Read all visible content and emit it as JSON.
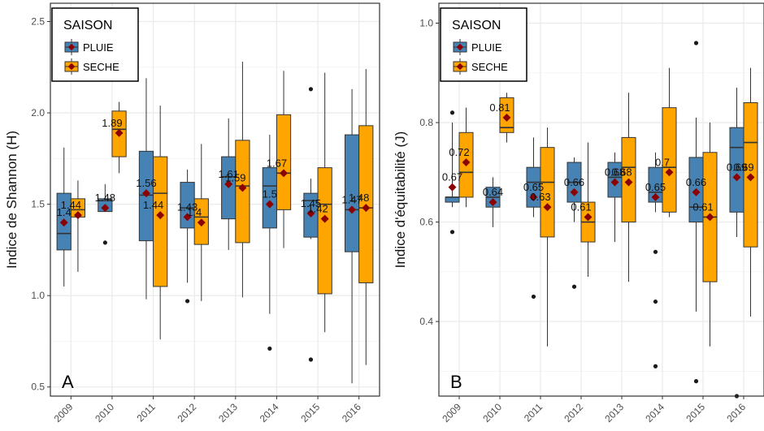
{
  "colors": {
    "pluie": "#4682B4",
    "seche": "#FFA500",
    "mean": "#8B0000",
    "grid": "#ebebeb",
    "border": "#333333"
  },
  "chart_data": [
    {
      "type": "box",
      "panel_label": "A",
      "ylabel": "Indice de Shannon (H)",
      "ylim": [
        0.45,
        2.6
      ],
      "yticks": [
        "0.5",
        "1.0",
        "1.5",
        "2.0",
        "2.5"
      ],
      "legend": {
        "title": "SAISON",
        "entries": [
          "PLUIE",
          "SECHE"
        ],
        "position": "top-left"
      },
      "categories": [
        "2009",
        "2010",
        "2011",
        "2012",
        "2013",
        "2014",
        "2015",
        "2016"
      ],
      "series": [
        {
          "name": "PLUIE",
          "whisker_low": [
            1.05,
            1.46,
            0.98,
            1.07,
            1.25,
            0.9,
            1.31,
            0.52
          ],
          "q1": [
            1.25,
            1.46,
            1.3,
            1.37,
            1.42,
            1.37,
            1.32,
            1.24
          ],
          "median": [
            1.34,
            1.52,
            1.55,
            1.48,
            1.65,
            1.6,
            1.52,
            1.47
          ],
          "q3": [
            1.56,
            1.53,
            1.79,
            1.62,
            1.76,
            1.7,
            1.56,
            1.88
          ],
          "whisker_high": [
            1.81,
            1.61,
            2.19,
            1.69,
            1.97,
            1.88,
            1.64,
            2.13
          ],
          "mean": [
            1.4,
            1.48,
            1.56,
            1.43,
            1.61,
            1.5,
            1.45,
            1.47
          ],
          "mean_labels": [
            "1.4",
            "1.48",
            "1.56",
            "1.43",
            "1.61",
            "1.5",
            "1.45",
            "1.47"
          ],
          "outliers": [
            [],
            [
              1.29
            ],
            [],
            [
              0.97
            ],
            [],
            [
              0.71
            ],
            [
              2.13,
              0.65
            ],
            []
          ]
        },
        {
          "name": "SECHE",
          "whisker_low": [
            1.13,
            1.67,
            0.76,
            0.97,
            0.99,
            1.26,
            0.8,
            0.62
          ],
          "q1": [
            1.43,
            1.76,
            1.05,
            1.28,
            1.29,
            1.47,
            1.01,
            1.07
          ],
          "median": [
            1.47,
            1.91,
            1.56,
            1.43,
            1.6,
            1.67,
            1.5,
            1.48
          ],
          "q3": [
            1.53,
            2.01,
            1.76,
            1.53,
            1.85,
            1.99,
            1.7,
            1.93
          ],
          "whisker_high": [
            1.63,
            2.06,
            2.04,
            1.83,
            2.28,
            2.23,
            2.22,
            2.24
          ],
          "mean": [
            1.44,
            1.89,
            1.44,
            1.4,
            1.59,
            1.67,
            1.42,
            1.48
          ],
          "mean_labels": [
            "1.44",
            "1.89",
            "1.44",
            "1.4",
            "1.59",
            "1.67",
            "1.42",
            "1.48"
          ],
          "outliers": [
            [],
            [],
            [],
            [],
            [],
            [],
            [],
            []
          ]
        }
      ]
    },
    {
      "type": "box",
      "panel_label": "B",
      "ylabel": "Indice d'équitabilité (J)",
      "ylim": [
        0.25,
        1.04
      ],
      "yticks": [
        "0.4",
        "0.6",
        "0.8",
        "1.0"
      ],
      "legend": {
        "title": "SAISON",
        "entries": [
          "PLUIE",
          "SECHE"
        ],
        "position": "top-left"
      },
      "categories": [
        "2009",
        "2010",
        "2011",
        "2012",
        "2013",
        "2014",
        "2015",
        "2016"
      ],
      "series": [
        {
          "name": "PLUIE",
          "whisker_low": [
            0.63,
            0.59,
            0.61,
            0.6,
            0.56,
            0.62,
            0.42,
            0.57
          ],
          "q1": [
            0.64,
            0.63,
            0.63,
            0.64,
            0.65,
            0.64,
            0.6,
            0.62
          ],
          "median": [
            0.65,
            0.65,
            0.68,
            0.68,
            0.69,
            0.66,
            0.63,
            0.75
          ],
          "q3": [
            0.65,
            0.67,
            0.71,
            0.72,
            0.72,
            0.71,
            0.73,
            0.79
          ],
          "whisker_high": [
            0.8,
            0.69,
            0.77,
            0.73,
            0.74,
            0.74,
            0.81,
            0.87
          ],
          "mean": [
            0.67,
            0.64,
            0.65,
            0.66,
            0.68,
            0.65,
            0.66,
            0.69
          ],
          "mean_labels": [
            "0.67",
            "0.64",
            "0.65",
            "0.66",
            "0.68",
            "0.65",
            "0.66",
            "0.69"
          ],
          "outliers": [
            [
              0.82,
              0.58
            ],
            [],
            [
              0.45
            ],
            [
              0.47
            ],
            [],
            [
              0.54,
              0.44,
              0.31
            ],
            [
              0.96,
              0.28
            ],
            [
              0.25
            ]
          ]
        },
        {
          "name": "SECHE",
          "whisker_low": [
            0.63,
            0.76,
            0.35,
            0.49,
            0.48,
            0.61,
            0.35,
            0.41
          ],
          "q1": [
            0.65,
            0.78,
            0.57,
            0.56,
            0.6,
            0.62,
            0.48,
            0.55
          ],
          "median": [
            0.7,
            0.79,
            0.68,
            0.6,
            0.71,
            0.71,
            0.61,
            0.76
          ],
          "q3": [
            0.78,
            0.85,
            0.75,
            0.64,
            0.77,
            0.83,
            0.74,
            0.84
          ],
          "whisker_high": [
            0.83,
            0.86,
            0.79,
            0.76,
            0.86,
            0.91,
            0.8,
            0.91
          ],
          "mean": [
            0.72,
            0.81,
            0.63,
            0.61,
            0.68,
            0.7,
            0.61,
            0.69
          ],
          "mean_labels": [
            "0.72",
            "0.81",
            "0.63",
            "0.61",
            "0.68",
            "0.7",
            "0.61",
            "0.69"
          ],
          "outliers": [
            [],
            [],
            [],
            [],
            [],
            [],
            [],
            []
          ]
        }
      ]
    }
  ]
}
